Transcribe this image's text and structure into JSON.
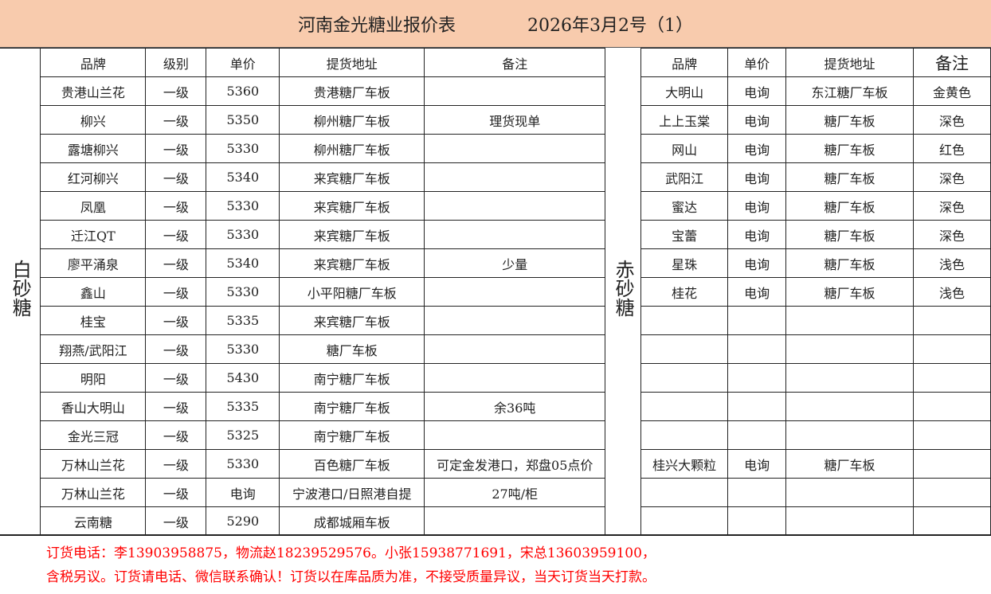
{
  "title": {
    "name": "河南金光糖业报价表",
    "date": "2026年3月2号（1）"
  },
  "white_sugar": {
    "label": "白砂糖",
    "headers": [
      "品牌",
      "级别",
      "单价",
      "提货地址",
      "备注"
    ],
    "rows": [
      [
        "贵港山兰花",
        "一级",
        "5360",
        "贵港糖厂车板",
        ""
      ],
      [
        "柳兴",
        "一级",
        "5350",
        "柳州糖厂车板",
        "理货现单"
      ],
      [
        "露塘柳兴",
        "一级",
        "5330",
        "柳州糖厂车板",
        ""
      ],
      [
        "红河柳兴",
        "一级",
        "5340",
        "来宾糖厂车板",
        ""
      ],
      [
        "凤凰",
        "一级",
        "5330",
        "来宾糖厂车板",
        ""
      ],
      [
        "迁江QT",
        "一级",
        "5330",
        "来宾糖厂车板",
        ""
      ],
      [
        "廖平涌泉",
        "一级",
        "5340",
        "来宾糖厂车板",
        "少量"
      ],
      [
        "鑫山",
        "一级",
        "5330",
        "小平阳糖厂车板",
        ""
      ],
      [
        "桂宝",
        "一级",
        "5335",
        "来宾糖厂车板",
        ""
      ],
      [
        "翔燕/武阳江",
        "一级",
        "5330",
        "糖厂车板",
        ""
      ],
      [
        "明阳",
        "一级",
        "5430",
        "南宁糖厂车板",
        ""
      ],
      [
        "香山大明山",
        "一级",
        "5335",
        "南宁糖厂车板",
        "余36吨"
      ],
      [
        "金光三冠",
        "一级",
        "5325",
        "南宁糖厂车板",
        ""
      ],
      [
        "万林山兰花",
        "一级",
        "5330",
        "百色糖厂车板",
        "可定金发港口，郑盘05点价"
      ],
      [
        "万林山兰花",
        "一级",
        "电询",
        "宁波港口/日照港自提",
        "27吨/柜"
      ],
      [
        "云南糖",
        "一级",
        "5290",
        "成都城厢车板",
        ""
      ]
    ]
  },
  "brown_sugar": {
    "label": "赤砂糖",
    "headers": [
      "品牌",
      "单价",
      "提货地址",
      "备注"
    ],
    "rows": [
      [
        "大明山",
        "电询",
        "东江糖厂车板",
        "金黄色"
      ],
      [
        "上上玉棠",
        "电询",
        "糖厂车板",
        "深色"
      ],
      [
        "网山",
        "电询",
        "糖厂车板",
        "红色"
      ],
      [
        "武阳江",
        "电询",
        "糖厂车板",
        "深色"
      ],
      [
        "蜜达",
        "电询",
        "糖厂车板",
        "深色"
      ],
      [
        "宝蕾",
        "电询",
        "糖厂车板",
        "深色"
      ],
      [
        "星珠",
        "电询",
        "糖厂车板",
        "浅色"
      ],
      [
        "桂花",
        "电询",
        "糖厂车板",
        "浅色"
      ],
      [
        "",
        "",
        "",
        ""
      ],
      [
        "",
        "",
        "",
        ""
      ],
      [
        "",
        "",
        "",
        ""
      ],
      [
        "",
        "",
        "",
        ""
      ],
      [
        "",
        "",
        "",
        ""
      ],
      [
        "桂兴大颗粒",
        "电询",
        "糖厂车板",
        ""
      ],
      [
        "",
        "",
        "",
        ""
      ],
      [
        "",
        "",
        "",
        ""
      ]
    ]
  },
  "footer": {
    "line1": "订货电话：李13903958875，物流赵18239529576。小张15938771691，宋总13603959100，",
    "line2": "含税另议。订货请电话、微信联系确认！订货以在库品质为准，不接受质量异议，当天订货当天打款。"
  },
  "colors": {
    "title_bg": "#f8cbad",
    "footer_text": "#ff0000"
  }
}
